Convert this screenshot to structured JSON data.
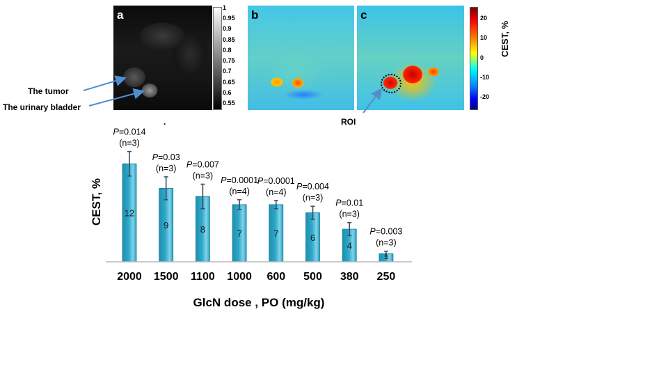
{
  "figure": {
    "panels": [
      {
        "letter": "a"
      },
      {
        "letter": "b"
      },
      {
        "letter": "c"
      }
    ],
    "gray_colorbar_ticks": [
      "1",
      "0.95",
      "0.9",
      "0.85",
      "0.8",
      "0.75",
      "0.7",
      "0.65",
      "0.6",
      "0.55"
    ],
    "cest_colorbar_ticks": [
      "20",
      "10",
      "0",
      "-10",
      "-20"
    ],
    "cest_colorbar_title": "CEST, %",
    "annotations": {
      "tumor": "The tumor",
      "bladder": "The urinary bladder",
      "roi": "ROI",
      "dot": "."
    },
    "colors": {
      "bar_fill": "#2fa9c9",
      "bar_edge": "#1b7c97",
      "arrow": "#4f8fd0",
      "error_bar": "#3a4f64"
    }
  },
  "chart_data": {
    "type": "bar",
    "title": "",
    "xlabel": "GlcN dose , PO (mg/kg)",
    "ylabel": "CEST, %",
    "ylim": [
      0,
      15
    ],
    "categories": [
      "2000",
      "1500",
      "1100",
      "1000",
      "600",
      "500",
      "380",
      "250"
    ],
    "values": [
      12,
      9,
      8,
      7,
      7,
      6,
      4,
      1
    ],
    "error": [
      1.5,
      1.4,
      1.5,
      0.6,
      0.5,
      0.8,
      0.8,
      0.3
    ],
    "p_prefix": "P",
    "p_values": [
      "=0.014",
      "=0.03",
      "=0.007",
      "=0.0001",
      "=0.0001",
      "=0.004",
      "=0.01",
      "=0.003"
    ],
    "n_labels": [
      "(n=3)",
      "(n=3)",
      "(n=3)",
      "(n=4)",
      "(n=4)",
      "(n=3)",
      "(n=3)",
      "(n=3)"
    ],
    "grid": false
  }
}
